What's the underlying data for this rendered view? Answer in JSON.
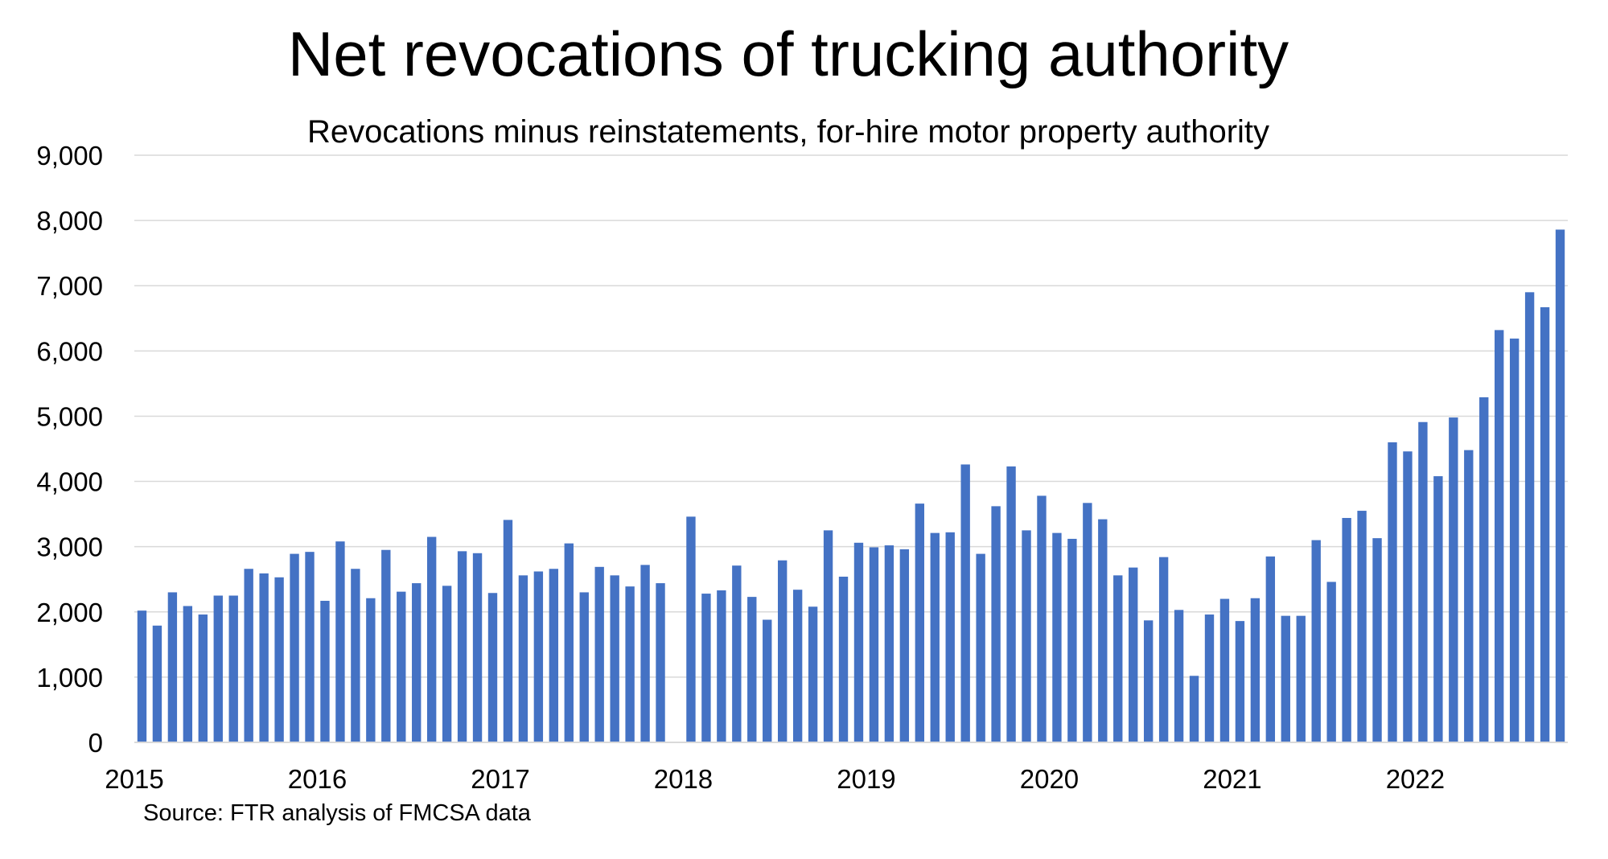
{
  "chart_data": {
    "type": "bar",
    "title": "Net revocations of trucking authority",
    "subtitle": "Revocations minus reinstatements, for-hire motor property authority",
    "source": "Source: FTR analysis of FMCSA data",
    "xlabel": "",
    "ylabel": "",
    "ylim": [
      0,
      9000
    ],
    "yticks": [
      "0",
      "1,000",
      "2,000",
      "3,000",
      "4,000",
      "5,000",
      "6,000",
      "7,000",
      "8,000",
      "9,000"
    ],
    "x_tick_labels": [
      "2015",
      "2016",
      "2017",
      "2018",
      "2019",
      "2020",
      "2021",
      "2022"
    ],
    "grid": true,
    "bar_color": "#4472C4",
    "categories": [
      "2015-01",
      "2015-02",
      "2015-03",
      "2015-04",
      "2015-05",
      "2015-06",
      "2015-07",
      "2015-08",
      "2015-09",
      "2015-10",
      "2015-11",
      "2015-12",
      "2016-01",
      "2016-02",
      "2016-03",
      "2016-04",
      "2016-05",
      "2016-06",
      "2016-07",
      "2016-08",
      "2016-09",
      "2016-10",
      "2016-11",
      "2016-12",
      "2017-01",
      "2017-02",
      "2017-03",
      "2017-04",
      "2017-05",
      "2017-06",
      "2017-07",
      "2017-08",
      "2017-09",
      "2017-10",
      "2017-11",
      "2017-12",
      "2018-01",
      "2018-02",
      "2018-03",
      "2018-04",
      "2018-05",
      "2018-06",
      "2018-07",
      "2018-08",
      "2018-09",
      "2018-10",
      "2018-11",
      "2018-12",
      "2019-01",
      "2019-02",
      "2019-03",
      "2019-04",
      "2019-05",
      "2019-06",
      "2019-07",
      "2019-08",
      "2019-09",
      "2019-10",
      "2019-11",
      "2019-12",
      "2020-01",
      "2020-02",
      "2020-03",
      "2020-04",
      "2020-05",
      "2020-06",
      "2020-07",
      "2020-08",
      "2020-09",
      "2020-10",
      "2020-11",
      "2020-12",
      "2021-01",
      "2021-02",
      "2021-03",
      "2021-04",
      "2021-05",
      "2021-06",
      "2021-07",
      "2021-08",
      "2021-09",
      "2021-10",
      "2021-11",
      "2021-12",
      "2022-01",
      "2022-02",
      "2022-03",
      "2022-04",
      "2022-05",
      "2022-06",
      "2022-07",
      "2022-08",
      "2022-09",
      "2022-10"
    ],
    "values": [
      2020,
      1790,
      2300,
      2090,
      1960,
      2250,
      2250,
      2660,
      2590,
      2530,
      2890,
      2920,
      2170,
      3080,
      2660,
      2210,
      2950,
      2310,
      2440,
      3150,
      2400,
      2930,
      2900,
      2290,
      3410,
      2560,
      2620,
      2660,
      3050,
      2300,
      2690,
      2560,
      2390,
      2720,
      2440,
      0,
      3460,
      2280,
      2330,
      2710,
      2230,
      1880,
      2790,
      2340,
      2080,
      3250,
      2540,
      3060,
      2990,
      3020,
      2960,
      3660,
      3210,
      3220,
      4260,
      2890,
      3620,
      4230,
      3250,
      3780,
      3210,
      3120,
      3670,
      3420,
      2560,
      2680,
      1870,
      2840,
      2030,
      1020,
      1960,
      2200,
      1860,
      2210,
      2850,
      1940,
      1940,
      3100,
      2460,
      3440,
      3550,
      3130,
      4600,
      4460,
      4910,
      4080,
      4980,
      4480,
      5290,
      6320,
      6190,
      6900,
      6670,
      7860
    ]
  }
}
